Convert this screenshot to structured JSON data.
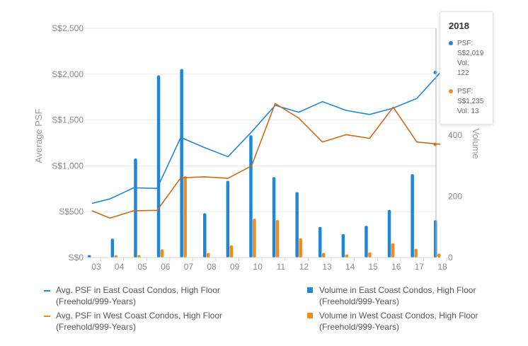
{
  "colors": {
    "east": "#1f87d6",
    "west": "#ee8c1e",
    "west_line": "#c9691a",
    "grid": "#ececec",
    "axis_text": "#8a8a8a"
  },
  "chart_data": {
    "type": "bar+line",
    "categories": [
      "03",
      "04",
      "05",
      "06",
      "07",
      "08",
      "09",
      "10",
      "11",
      "12",
      "13",
      "14",
      "15",
      "16",
      "17",
      "18"
    ],
    "ylabel_left": "Average PSF",
    "ylabel_right": "Volume",
    "y_left_ticks": [
      "S$0",
      "S$500",
      "S$1,000",
      "S$1,500",
      "S$2,000",
      "S$2,500"
    ],
    "y_left_range": [
      0,
      2500
    ],
    "y_right_ticks": [
      "0",
      "200",
      "400"
    ],
    "y_right_range": [
      0,
      750
    ],
    "grid": true,
    "legend_position": "bottom",
    "series": [
      {
        "name": "Avg. PSF in East Coast Condos, High Floor (Freehold/999-Years)",
        "kind": "line",
        "axis": "left",
        "color_key": "east",
        "values": [
          590,
          640,
          760,
          755,
          1310,
          1200,
          1100,
          1370,
          1660,
          1585,
          1700,
          1605,
          1560,
          1630,
          1735,
          2019
        ]
      },
      {
        "name": "Avg. PSF in West Coast Condos, High Floor (Freehold/999-Years)",
        "kind": "line",
        "axis": "left",
        "color_key": "west_line",
        "values": [
          510,
          430,
          510,
          515,
          870,
          880,
          865,
          1000,
          1680,
          1520,
          1260,
          1340,
          1300,
          1640,
          1260,
          1235
        ]
      },
      {
        "name": "Volume in East Coast Condos, High Floor (Freehold/999-Years)",
        "kind": "bar",
        "axis": "right",
        "color_key": "east",
        "values": [
          8,
          62,
          324,
          596,
          617,
          145,
          251,
          400,
          263,
          214,
          100,
          77,
          104,
          156,
          273,
          122
        ]
      },
      {
        "name": "Volume in West Coast Condos, High Floor (Freehold/999-Years)",
        "kind": "bar",
        "axis": "right",
        "color_key": "west",
        "values": [
          0,
          8,
          8,
          27,
          266,
          15,
          40,
          127,
          123,
          63,
          15,
          10,
          17,
          47,
          29,
          13
        ]
      }
    ]
  },
  "legend": [
    {
      "label": "Avg. PSF in East Coast Condos, High Floor\n(Freehold/999-Years)",
      "type": "line",
      "color": "#1f87d6"
    },
    {
      "label": "Volume in East Coast Condos, High Floor\n(Freehold/999-Years)",
      "type": "box",
      "color": "#1f87d6"
    },
    {
      "label": "Avg. PSF in West Coast Condos, High Floor\n(Freehold/999-Years)",
      "type": "line",
      "color": "#ee8c1e"
    },
    {
      "label": "Volume in West Coast Condos, High Floor\n(Freehold/999-Years)",
      "type": "box",
      "color": "#ee8c1e"
    }
  ],
  "tooltip": {
    "year": "2018",
    "east": "PSF:\nS$2,019\nVol:\n122",
    "west": "PSF:\nS$1,235\nVol: 13"
  }
}
